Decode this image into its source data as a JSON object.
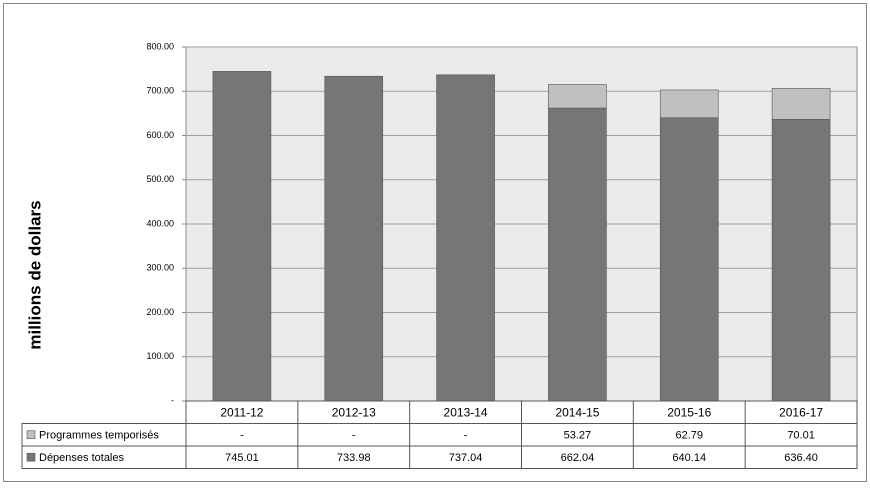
{
  "chart_data": {
    "type": "stacked_bar",
    "y_label": "millions de dollars",
    "categories": [
      "2011-12",
      "2012-13",
      "2013-14",
      "2014-15",
      "2015-16",
      "2016-17"
    ],
    "series": [
      {
        "name": "Programmes temporisés",
        "color": "#c0c0c0",
        "values": [
          null,
          null,
          null,
          53.27,
          62.79,
          70.01
        ],
        "value_labels": [
          "-",
          "-",
          "-",
          "53.27",
          "62.79",
          "70.01"
        ]
      },
      {
        "name": "Dépenses totales",
        "color": "#767676",
        "values": [
          745.01,
          733.98,
          737.04,
          662.04,
          640.14,
          636.4
        ],
        "value_labels": [
          "745.01",
          "733.98",
          "737.04",
          "662.04",
          "640.14",
          "636.40"
        ]
      }
    ],
    "ylim": [
      0,
      800
    ],
    "yticks": [
      {
        "value": 0,
        "label": "-"
      },
      {
        "value": 100,
        "label": "100.00"
      },
      {
        "value": 200,
        "label": "200.00"
      },
      {
        "value": 300,
        "label": "300.00"
      },
      {
        "value": 400,
        "label": "400.00"
      },
      {
        "value": 500,
        "label": "500.00"
      },
      {
        "value": 600,
        "label": "600.00"
      },
      {
        "value": 700,
        "label": "700.00"
      },
      {
        "value": 800,
        "label": "800.00"
      }
    ],
    "grid": true
  }
}
